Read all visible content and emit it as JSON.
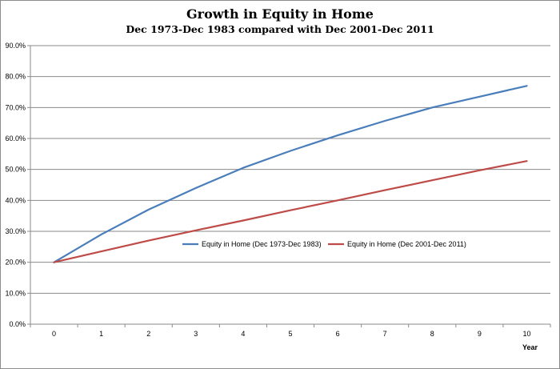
{
  "chart_data": {
    "type": "line",
    "title": "Growth in Equity in Home",
    "subtitle": "Dec 1973-Dec 1983 compared with Dec 2001-Dec 2011",
    "xlabel": "Year",
    "ylabel": "",
    "x": [
      0,
      1,
      2,
      3,
      4,
      5,
      6,
      7,
      8,
      9,
      10
    ],
    "ylim": [
      0,
      90
    ],
    "yticks": [
      "0.0%",
      "10.0%",
      "20.0%",
      "30.0%",
      "40.0%",
      "50.0%",
      "60.0%",
      "70.0%",
      "80.0%",
      "90.0%"
    ],
    "grid": true,
    "legend_position": "center",
    "series": [
      {
        "name": "Equity in Home (Dec 1973-Dec 1983)",
        "color": "#4a7ebb",
        "values": [
          20.0,
          29.0,
          37.0,
          44.0,
          50.5,
          56.0,
          61.0,
          65.7,
          70.0,
          73.5,
          77.0
        ]
      },
      {
        "name": "Equity in Home (Dec 2001-Dec 2011)",
        "color": "#be4b48",
        "values": [
          20.0,
          23.5,
          27.0,
          30.3,
          33.5,
          36.8,
          40.0,
          43.3,
          46.5,
          49.7,
          52.7
        ]
      }
    ]
  }
}
